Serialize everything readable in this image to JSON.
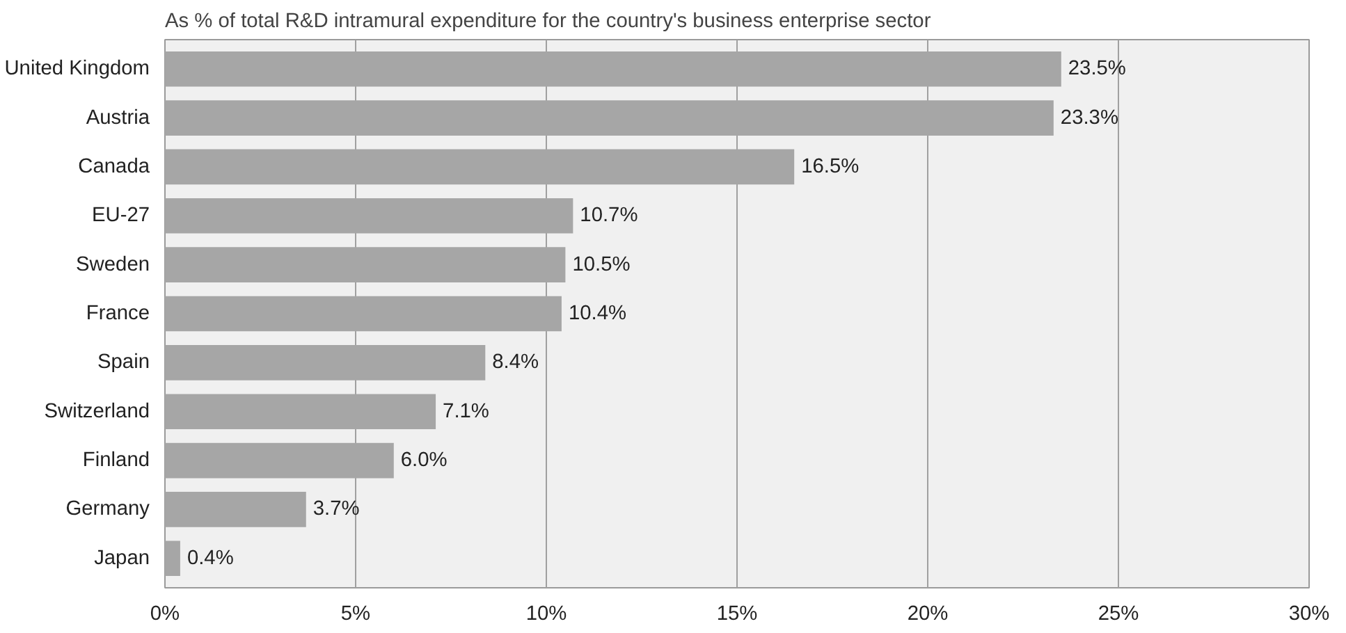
{
  "chart_data": {
    "type": "bar",
    "orientation": "horizontal",
    "title": "As % of total R&D intramural expenditure for the country's business enterprise sector",
    "categories": [
      "United Kingdom",
      "Austria",
      "Canada",
      "EU-27",
      "Sweden",
      "France",
      "Spain",
      "Switzerland",
      "Finland",
      "Germany",
      "Japan"
    ],
    "values": [
      23.5,
      23.3,
      16.5,
      10.7,
      10.5,
      10.4,
      8.4,
      7.1,
      6.0,
      3.7,
      0.4
    ],
    "value_labels": [
      "23.5%",
      "23.3%",
      "16.5%",
      "10.7%",
      "10.5%",
      "10.4%",
      "8.4%",
      "7.1%",
      "6.0%",
      "3.7%",
      "0.4%"
    ],
    "color": "#a6a6a6",
    "xlim": [
      0,
      30
    ],
    "xticks": [
      {
        "value": 0,
        "label": "0%"
      },
      {
        "value": 5,
        "label": "5%"
      },
      {
        "value": 10,
        "label": "10%"
      },
      {
        "value": 15,
        "label": "15%"
      },
      {
        "value": 20,
        "label": "20%"
      },
      {
        "value": 25,
        "label": "25%"
      },
      {
        "value": 30,
        "label": "30%"
      }
    ],
    "grid": "x"
  }
}
